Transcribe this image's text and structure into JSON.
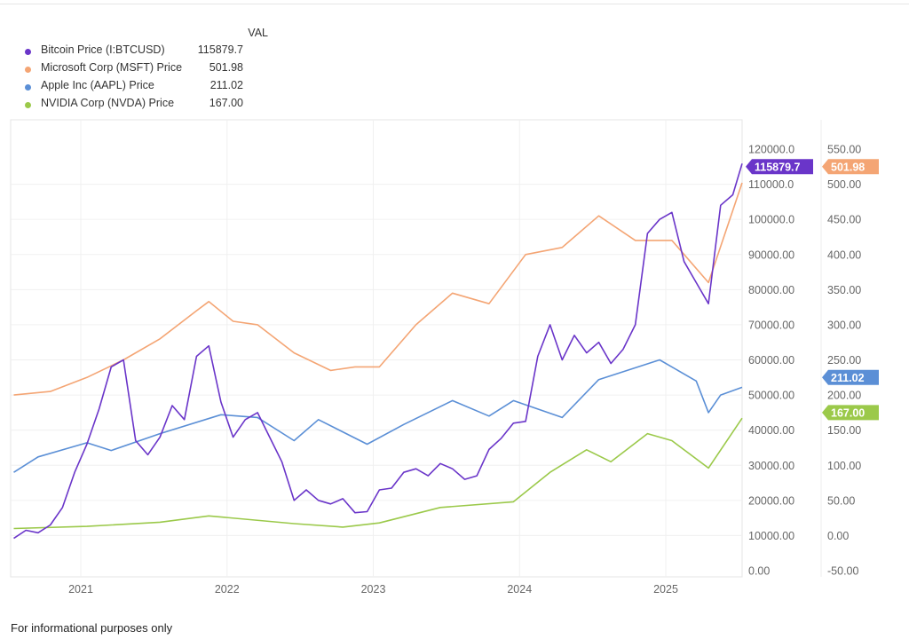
{
  "legend": {
    "header": "VAL",
    "items": [
      {
        "name": "Bitcoin Price (I:BTCUSD)",
        "value": "115879.7",
        "color": "#6a35c9"
      },
      {
        "name": "Microsoft Corp (MSFT) Price",
        "value": "501.98",
        "color": "#f4a574"
      },
      {
        "name": "Apple Inc (AAPL) Price",
        "value": "211.02",
        "color": "#5b8fd6"
      },
      {
        "name": "NVIDIA Corp (NVDA) Price",
        "value": "167.00",
        "color": "#9bc94a"
      }
    ]
  },
  "footer": "For informational purposes only",
  "chart_data": {
    "type": "line",
    "grid": true,
    "legend_placement": "top-left",
    "x_ticks": [
      "2021",
      "2022",
      "2023",
      "2024",
      "2025"
    ],
    "xlim": [
      "2020-07",
      "2025-07"
    ],
    "left_axis": {
      "ylim": [
        0,
        120000
      ],
      "ticks": [
        "0.00",
        "10000.00",
        "20000.00",
        "30000.00",
        "40000.00",
        "50000.00",
        "60000.00",
        "70000.00",
        "80000.00",
        "90000.00",
        "100000.0",
        "110000.0",
        "120000.0"
      ]
    },
    "right_axis": {
      "ylim": [
        -50,
        550
      ],
      "ticks": [
        "-50.00",
        "0.00",
        "50.00",
        "100.00",
        "150.00",
        "200.00",
        "250.00",
        "300.00",
        "350.00",
        "400.00",
        "450.00",
        "500.00",
        "550.00"
      ]
    },
    "series": [
      {
        "name": "Bitcoin Price (I:BTCUSD)",
        "axis": "left",
        "color": "#6a35c9",
        "last_label": "115879.7",
        "x": [
          "2020-07",
          "2020-08",
          "2020-09",
          "2020-10",
          "2020-11",
          "2020-12",
          "2021-01",
          "2021-02",
          "2021-03",
          "2021-04",
          "2021-05",
          "2021-06",
          "2021-07",
          "2021-08",
          "2021-09",
          "2021-10",
          "2021-11",
          "2021-12",
          "2022-01",
          "2022-02",
          "2022-03",
          "2022-04",
          "2022-05",
          "2022-06",
          "2022-07",
          "2022-08",
          "2022-09",
          "2022-10",
          "2022-11",
          "2022-12",
          "2023-01",
          "2023-02",
          "2023-03",
          "2023-04",
          "2023-05",
          "2023-06",
          "2023-07",
          "2023-08",
          "2023-09",
          "2023-10",
          "2023-11",
          "2023-12",
          "2024-01",
          "2024-02",
          "2024-03",
          "2024-04",
          "2024-05",
          "2024-06",
          "2024-07",
          "2024-08",
          "2024-09",
          "2024-10",
          "2024-11",
          "2024-12",
          "2025-01",
          "2025-02",
          "2025-03",
          "2025-04",
          "2025-05",
          "2025-06",
          "2025-07"
        ],
        "y": [
          9200,
          11500,
          10800,
          13000,
          18000,
          28000,
          36000,
          46000,
          58000,
          60000,
          37000,
          33000,
          38000,
          47000,
          43000,
          61000,
          64000,
          48000,
          38000,
          43000,
          45000,
          38000,
          31000,
          20000,
          23000,
          20000,
          19000,
          20500,
          16500,
          16800,
          23000,
          23500,
          28000,
          29000,
          27000,
          30500,
          29000,
          26000,
          27000,
          34500,
          37700,
          42000,
          42500,
          61000,
          70000,
          60000,
          67000,
          62000,
          65000,
          59000,
          63000,
          70000,
          96000,
          100000,
          102000,
          88000,
          82000,
          76000,
          104000,
          107000,
          115879.7
        ]
      },
      {
        "name": "Microsoft Corp (MSFT) Price",
        "axis": "right",
        "color": "#f4a574",
        "last_label": "501.98",
        "x": [
          "2020-07",
          "2020-10",
          "2021-01",
          "2021-04",
          "2021-07",
          "2021-10",
          "2021-11",
          "2022-01",
          "2022-03",
          "2022-06",
          "2022-09",
          "2022-11",
          "2023-01",
          "2023-04",
          "2023-07",
          "2023-10",
          "2024-01",
          "2024-04",
          "2024-07",
          "2024-10",
          "2025-01",
          "2025-04",
          "2025-07"
        ],
        "y": [
          200,
          205,
          225,
          250,
          280,
          320,
          333,
          305,
          300,
          260,
          235,
          240,
          240,
          300,
          345,
          330,
          400,
          410,
          455,
          420,
          420,
          360,
          501.98
        ]
      },
      {
        "name": "Apple Inc (AAPL) Price",
        "axis": "right",
        "color": "#5b8fd6",
        "last_label": "211.02",
        "x": [
          "2020-07",
          "2020-09",
          "2021-01",
          "2021-03",
          "2021-07",
          "2021-12",
          "2022-03",
          "2022-06",
          "2022-08",
          "2022-12",
          "2023-03",
          "2023-07",
          "2023-10",
          "2023-12",
          "2024-04",
          "2024-07",
          "2024-12",
          "2025-03",
          "2025-04",
          "2025-05",
          "2025-07"
        ],
        "y": [
          90,
          112,
          132,
          121,
          145,
          172,
          168,
          135,
          165,
          130,
          158,
          192,
          170,
          192,
          168,
          222,
          250,
          220,
          175,
          200,
          211.02
        ]
      },
      {
        "name": "NVIDIA Corp (NVDA) Price",
        "axis": "right",
        "color": "#9bc94a",
        "last_label": "167.00",
        "x": [
          "2020-07",
          "2021-01",
          "2021-07",
          "2021-11",
          "2022-06",
          "2022-10",
          "2023-01",
          "2023-06",
          "2023-12",
          "2024-03",
          "2024-06",
          "2024-08",
          "2024-11",
          "2025-01",
          "2025-04",
          "2025-07"
        ],
        "y": [
          10,
          13,
          19,
          28,
          17,
          12,
          18,
          40,
          48,
          90,
          122,
          105,
          145,
          135,
          96,
          167
        ]
      }
    ]
  }
}
